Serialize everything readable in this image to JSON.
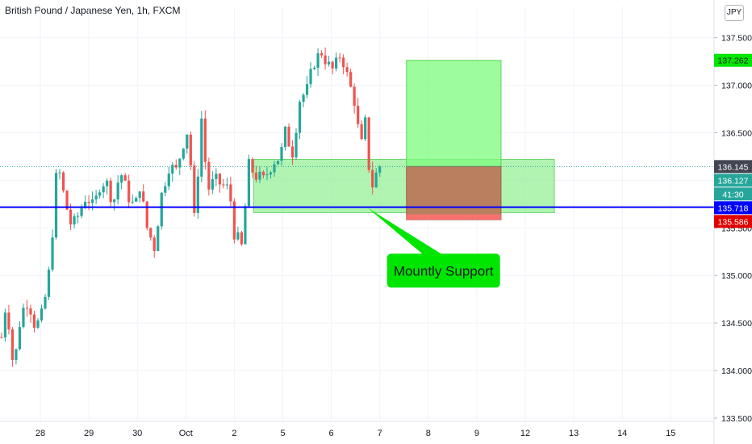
{
  "chart_data": {
    "type": "candlestick",
    "title": "British Pound / Japanese Yen, 1h, FXCM",
    "currency": "JPY",
    "y_axis": {
      "ylim": [
        133.5,
        137.75
      ],
      "ticks": [
        133.5,
        134.0,
        134.5,
        135.0,
        135.5,
        136.0,
        136.5,
        137.0,
        137.5
      ],
      "tick_labels": [
        "133.500",
        "134.000",
        "134.500",
        "135.000",
        "135.500",
        "136.000",
        "136.500",
        "137.000",
        "137.500"
      ]
    },
    "x_axis": {
      "labels": [
        "28",
        "29",
        "30",
        "Oct",
        "2",
        "5",
        "6",
        "7",
        "8",
        "9",
        "12",
        "13",
        "14",
        "15"
      ],
      "label_index": [
        0,
        1,
        2,
        3,
        4,
        5,
        6,
        7,
        8,
        9,
        10,
        11,
        12,
        13
      ]
    },
    "price_path": [
      [
        -0.8,
        134.35
      ],
      [
        -0.7,
        134.75
      ],
      [
        -0.55,
        134.0
      ],
      [
        -0.4,
        134.6
      ],
      [
        -0.25,
        134.75
      ],
      [
        -0.1,
        134.45
      ],
      [
        0.05,
        134.6
      ],
      [
        0.2,
        135.1
      ],
      [
        0.35,
        136.2
      ],
      [
        0.5,
        135.8
      ],
      [
        0.65,
        135.5
      ],
      [
        0.8,
        135.65
      ],
      [
        0.95,
        135.85
      ],
      [
        1.1,
        135.7
      ],
      [
        1.25,
        136.0
      ],
      [
        1.4,
        135.95
      ],
      [
        1.5,
        135.75
      ],
      [
        1.65,
        136.1
      ],
      [
        1.8,
        135.85
      ],
      [
        1.95,
        135.7
      ],
      [
        2.05,
        135.95
      ],
      [
        2.2,
        135.5
      ],
      [
        2.35,
        135.3
      ],
      [
        2.5,
        135.85
      ],
      [
        2.65,
        136.15
      ],
      [
        2.8,
        136.1
      ],
      [
        2.95,
        136.4
      ],
      [
        3.05,
        136.55
      ],
      [
        3.2,
        135.4
      ],
      [
        3.3,
        136.8
      ],
      [
        3.45,
        135.9
      ],
      [
        3.6,
        136.0
      ],
      [
        3.75,
        135.95
      ],
      [
        3.9,
        135.9
      ],
      [
        4.0,
        135.45
      ],
      [
        4.15,
        135.3
      ],
      [
        4.3,
        136.15
      ],
      [
        4.45,
        136.05
      ],
      [
        4.6,
        136.0
      ],
      [
        4.8,
        136.2
      ],
      [
        4.95,
        136.25
      ],
      [
        5.05,
        136.5
      ],
      [
        5.2,
        136.3
      ],
      [
        5.35,
        136.85
      ],
      [
        5.5,
        136.95
      ],
      [
        5.65,
        137.25
      ],
      [
        5.8,
        137.35
      ],
      [
        5.95,
        137.2
      ],
      [
        6.05,
        137.15
      ],
      [
        6.2,
        137.35
      ],
      [
        6.35,
        137.05
      ],
      [
        6.5,
        136.8
      ],
      [
        6.6,
        136.3
      ],
      [
        6.7,
        136.6
      ],
      [
        6.8,
        136.0
      ],
      [
        6.85,
        135.95
      ],
      [
        6.95,
        136.1
      ],
      [
        7.0,
        136.15
      ]
    ],
    "current_price": "136.145",
    "price_labels": [
      {
        "value": "137.262",
        "price": 137.262,
        "bg": "#00e600",
        "fg": "#131722"
      },
      {
        "value": "136.145",
        "price": 136.145,
        "bg": "#434651",
        "fg": "#ffffff"
      },
      {
        "value": "136.127",
        "price": 136.127,
        "bg": "#26a69a",
        "fg": "#ffffff"
      },
      {
        "value": "41:30",
        "price": 136.0,
        "bg": "#26a69a",
        "fg": "#ffffff"
      },
      {
        "value": "135.718",
        "price": 135.718,
        "bg": "#0000ff",
        "fg": "#ffffff"
      },
      {
        "value": "135.586",
        "price": 135.586,
        "bg": "#e00000",
        "fg": "#ffffff"
      }
    ],
    "support_line": 135.718,
    "support_zone": {
      "x_from": 4.4,
      "x_to": 10.6,
      "y_from": 135.66,
      "y_to": 136.22
    },
    "target_box": {
      "x_from": 7.55,
      "x_to": 9.5,
      "y_from": 136.145,
      "y_to": 137.262
    },
    "stop_box": {
      "x_from": 7.55,
      "x_to": 9.5,
      "y_from": 135.586,
      "y_to": 136.145
    },
    "stop_strip": {
      "x_from": 7.55,
      "x_to": 9.5,
      "y_from": 135.586,
      "y_to": 135.64
    },
    "annotation": {
      "text": "Mountly Support",
      "x": 7.25,
      "y": 135.05,
      "pointer_x": 6.75,
      "pointer_y": 135.71
    },
    "colors": {
      "up": "#26a69a",
      "down": "#ef5350",
      "support": "#0000ff",
      "zone": "#90ee90",
      "target": "#7cfc7c",
      "stop": "#b9785a",
      "annotation": "#00e600"
    }
  }
}
